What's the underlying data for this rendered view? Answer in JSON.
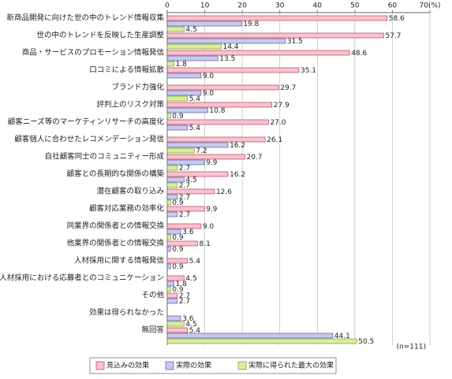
{
  "chart_data": {
    "type": "bar",
    "orientation": "horizontal",
    "annotation": "(n=111)",
    "categories": [
      "新商品開発に向けた世の中のトレンド情報収集",
      "世の中のトレンドを反映した生産調整",
      "商品・サービスのプロモーション情報発信",
      "口コミによる情報拡散",
      "ブランド力強化",
      "評判上のリスク対策",
      "顧客ニーズ等のマーケティンリサーチの高度化",
      "顧客個人に合わせたレコメンデーション発信",
      "自社顧客同士のコミュニティー形成",
      "顧客との長期的な関係の構築",
      "潜在顧客の取り込み",
      "顧客対応業務の効率化",
      "同業界の関係者との情報交換",
      "他業界の関係者との情報交換",
      "人材採用に関する情報発信",
      "人材採用における応募者とのコミュニケーション",
      "その他",
      "効果は得られなかった",
      "無回答"
    ],
    "series": [
      {
        "name": "見込みの効果",
        "color": "#f6c3cf",
        "values": [
          58.6,
          57.7,
          48.6,
          35.1,
          29.7,
          27.9,
          27.0,
          26.1,
          20.7,
          16.2,
          12.6,
          9.9,
          9.0,
          8.1,
          5.4,
          4.5,
          2.7,
          null,
          5.4
        ],
        "value_labels": [
          "58.6",
          "57.7",
          "48.6",
          "35.1",
          "29.7",
          "27.9",
          "27.0",
          "26.1",
          "20.7",
          "16.2",
          "12.6",
          "9.9",
          "9.0",
          "8.1",
          "5.4",
          "4.5",
          "2.7",
          null,
          "5.4"
        ]
      },
      {
        "name": "実際の効果",
        "color": "#c9c9ee",
        "values": [
          19.8,
          31.5,
          13.5,
          9.0,
          9.0,
          10.8,
          5.4,
          16.2,
          9.9,
          4.5,
          2.7,
          2.7,
          3.6,
          0.9,
          0.9,
          1.8,
          2.7,
          3.6,
          44.1
        ],
        "value_labels": [
          "19.8",
          "31.5",
          "13.5",
          "9.0",
          "9.0",
          "10.8",
          "5.4",
          "16.2",
          "9.9",
          "4.5",
          "2.7",
          "2.7",
          "3.6",
          "0.9",
          "0.9",
          "1.8",
          "2.7",
          "3.6",
          "44.1"
        ]
      },
      {
        "name": "実際に得られた最大の効果",
        "color": "#d8ee9c",
        "values": [
          4.5,
          14.4,
          1.8,
          null,
          5.4,
          0.9,
          null,
          7.2,
          2.7,
          2.7,
          0.9,
          null,
          0.9,
          null,
          null,
          0.9,
          null,
          4.5,
          50.5
        ],
        "value_labels": [
          "4.5",
          "14.4",
          "1.8",
          null,
          "5.4",
          "0.9",
          null,
          "7.2",
          "2.7",
          "2.7",
          "0.9",
          null,
          "0.9",
          null,
          null,
          "0.9",
          null,
          "4.5",
          "50.5"
        ]
      }
    ],
    "xlim": [
      0,
      70
    ],
    "xticks": [
      0,
      10,
      20,
      30,
      40,
      50,
      60,
      {
        "value": 70,
        "label": "70(%)"
      }
    ],
    "grid": true
  }
}
